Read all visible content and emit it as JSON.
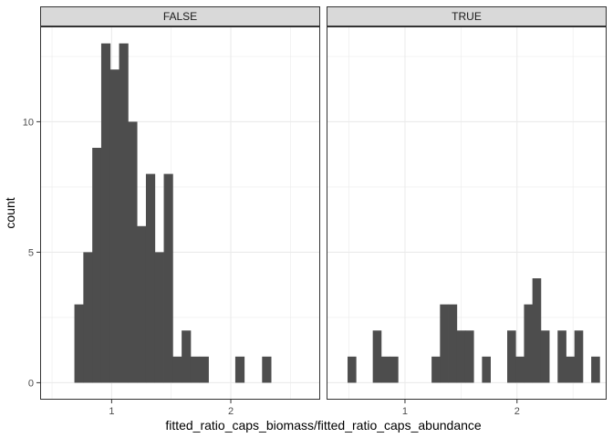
{
  "chart_data": {
    "type": "bar",
    "ylabel": "count",
    "xlabel": "fitted_ratio_caps_biomass/fitted_ratio_caps_abundance",
    "bin_width": 0.075,
    "x_ticks": [
      1,
      2
    ],
    "y_ticks": [
      0,
      5,
      10
    ],
    "grid": true,
    "colors": {
      "bar": "#4d4d4d",
      "strip": "#d9d9d9",
      "grid": "#ebebeb",
      "border": "#333333"
    },
    "panels": [
      {
        "label": "FALSE",
        "xlim": [
          0.4,
          2.75
        ],
        "ylim": [
          -0.65,
          13.65
        ],
        "bins": [
          {
            "x": 0.725,
            "count": 3
          },
          {
            "x": 0.8,
            "count": 5
          },
          {
            "x": 0.875,
            "count": 9
          },
          {
            "x": 0.95,
            "count": 13
          },
          {
            "x": 1.025,
            "count": 12
          },
          {
            "x": 1.1,
            "count": 13
          },
          {
            "x": 1.175,
            "count": 10
          },
          {
            "x": 1.25,
            "count": 6
          },
          {
            "x": 1.325,
            "count": 8
          },
          {
            "x": 1.4,
            "count": 5
          },
          {
            "x": 1.475,
            "count": 8
          },
          {
            "x": 1.55,
            "count": 1
          },
          {
            "x": 1.625,
            "count": 2
          },
          {
            "x": 1.7,
            "count": 1
          },
          {
            "x": 1.775,
            "count": 1
          },
          {
            "x": 2.075,
            "count": 1
          },
          {
            "x": 2.3,
            "count": 1
          }
        ]
      },
      {
        "label": "TRUE",
        "xlim": [
          0.3,
          2.8
        ],
        "ylim": [
          -0.65,
          13.65
        ],
        "bins": [
          {
            "x": 0.525,
            "count": 1
          },
          {
            "x": 0.75,
            "count": 2
          },
          {
            "x": 0.825,
            "count": 1
          },
          {
            "x": 0.9,
            "count": 1
          },
          {
            "x": 1.275,
            "count": 1
          },
          {
            "x": 1.35,
            "count": 3
          },
          {
            "x": 1.425,
            "count": 3
          },
          {
            "x": 1.5,
            "count": 2
          },
          {
            "x": 1.575,
            "count": 2
          },
          {
            "x": 1.725,
            "count": 1
          },
          {
            "x": 1.95,
            "count": 2
          },
          {
            "x": 2.025,
            "count": 1
          },
          {
            "x": 2.1,
            "count": 3
          },
          {
            "x": 2.175,
            "count": 4
          },
          {
            "x": 2.25,
            "count": 2
          },
          {
            "x": 2.4,
            "count": 2
          },
          {
            "x": 2.475,
            "count": 1
          },
          {
            "x": 2.55,
            "count": 2
          },
          {
            "x": 2.7,
            "count": 1
          }
        ]
      }
    ]
  }
}
